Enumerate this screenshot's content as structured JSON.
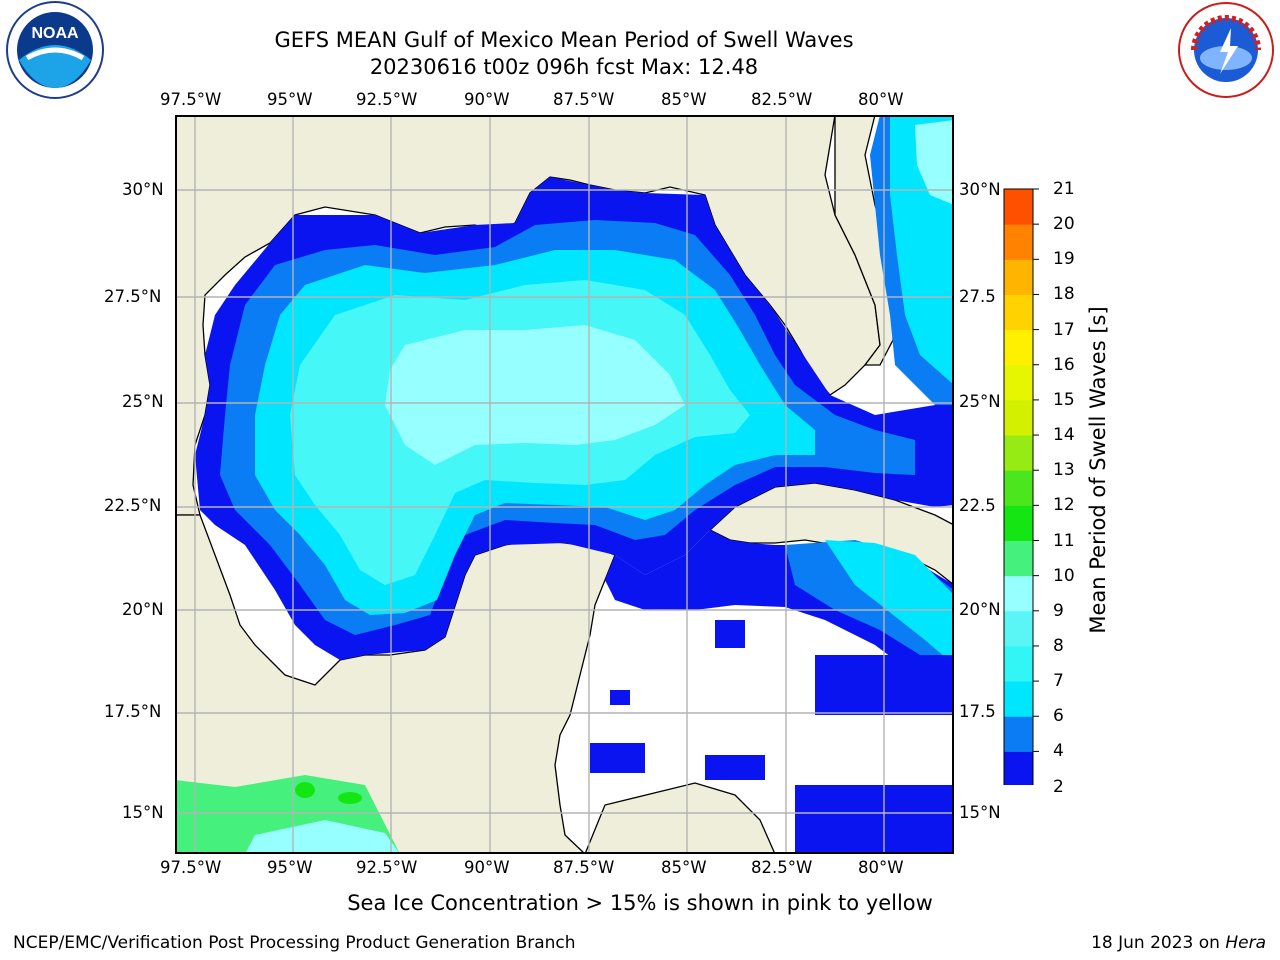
{
  "title": {
    "line1": "GEFS MEAN Gulf of Mexico Mean Period of Swell Waves",
    "line2": "20230616 t00z 096h fcst   Max: 12.48"
  },
  "axes": {
    "lon_labels": [
      "97.5°W",
      "95°W",
      "92.5°W",
      "90°W",
      "87.5°W",
      "85°W",
      "82.5°W",
      "80°W"
    ],
    "lat_labels_left": [
      "30°N",
      "27.5°N",
      "25°N",
      "22.5°N",
      "20°N",
      "17.5°N",
      "15°N"
    ],
    "lat_labels_right": [
      "30°N",
      "27.5",
      "25°N",
      "22.5",
      "20°N",
      "17.5",
      "15°N"
    ]
  },
  "colorbar": {
    "title": "Mean Period of Swell Waves [s]",
    "levels": [
      "2",
      "4",
      "6",
      "7",
      "8",
      "9",
      "10",
      "11",
      "12",
      "13",
      "14",
      "15",
      "16",
      "17",
      "18",
      "19",
      "20",
      "21"
    ],
    "colors": [
      "#0a14f0",
      "#0a7df5",
      "#00e6ff",
      "#32f5f5",
      "#5af5f5",
      "#96ffff",
      "#46f07d",
      "#14e614",
      "#4be61e",
      "#96eb14",
      "#d2f000",
      "#e6f500",
      "#fff000",
      "#ffd200",
      "#ffb400",
      "#ff8200",
      "#ff5000",
      "#ff2800",
      "#ff0000"
    ],
    "extend_color": "#0000e6"
  },
  "colors": {
    "land": "#efeedb",
    "ocean_blank": "#ffffff",
    "grid": "#b4b4b4",
    "coast": "#000000"
  },
  "footer": {
    "note": "Sea Ice Concentration > 15% is shown in pink to yellow",
    "credit_left": "NCEP/EMC/Verification Post Processing Product Generation Branch",
    "credit_date": "18 Jun 2023 on",
    "credit_machine": "Hera"
  },
  "logos": {
    "left": "noaa-logo",
    "right": "national-weather-service-logo",
    "left_text": "NOAA",
    "right_text": "NATIONAL WEATHER SERVICE"
  }
}
